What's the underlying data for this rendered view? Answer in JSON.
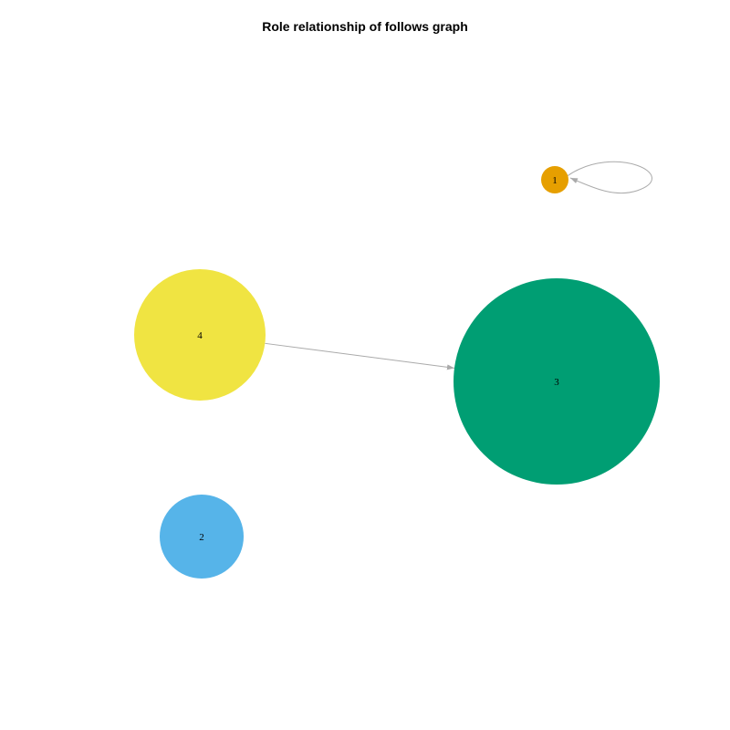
{
  "title": "Role relationship of follows graph",
  "edge_color": "#aaaaaa",
  "nodes": [
    {
      "id": "1",
      "label": "1",
      "color": "#E69F00"
    },
    {
      "id": "2",
      "label": "2",
      "color": "#56B4E9"
    },
    {
      "id": "3",
      "label": "3",
      "color": "#009E73"
    },
    {
      "id": "4",
      "label": "4",
      "color": "#F0E442"
    }
  ],
  "edges": [
    {
      "from": "1",
      "to": "1"
    },
    {
      "from": "4",
      "to": "3"
    }
  ]
}
